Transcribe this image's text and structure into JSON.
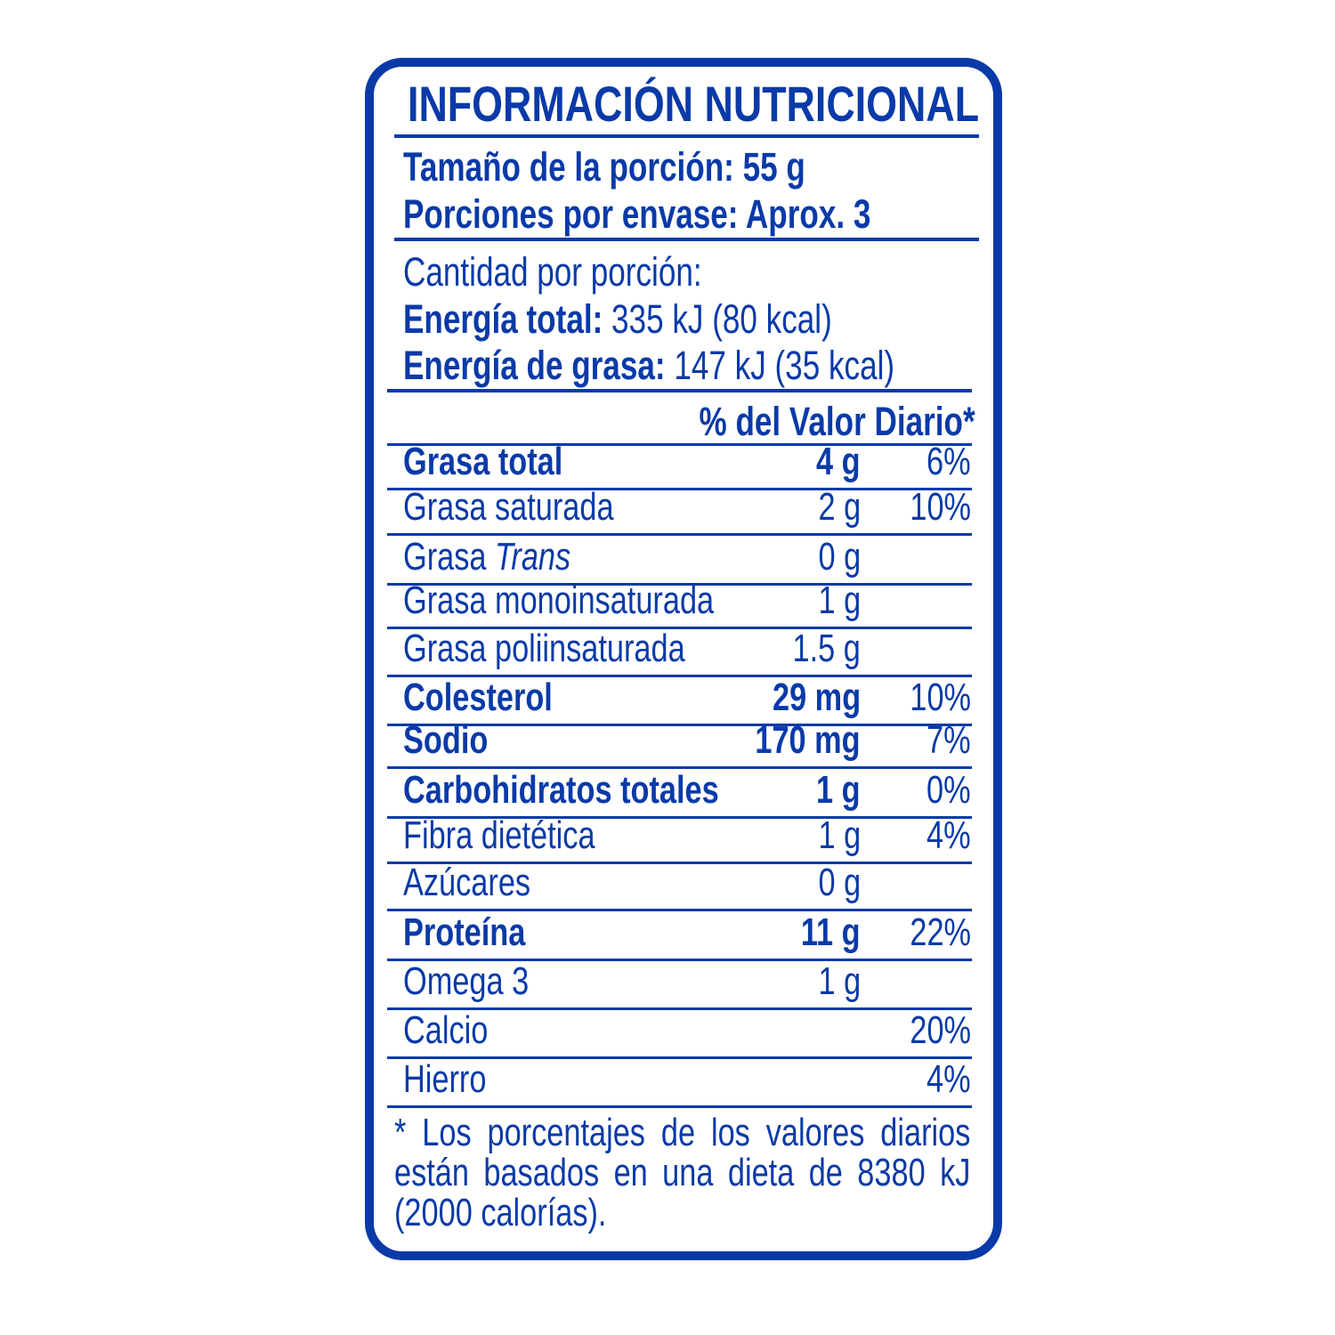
{
  "title": "INFORMACIÓN NUTRICIONAL",
  "serving_size": "Tamaño de la porción: 55 g",
  "servings_per_container": "Porciones por envase: Aprox. 3",
  "amount_per_serving": "Cantidad por porción:",
  "energy_total": {
    "label": "Energía total:",
    "value": " 335 kJ (80 kcal)"
  },
  "energy_fat": {
    "label": "Energía de grasa:",
    "value": " 147 kJ (35 kcal)"
  },
  "dv_header": "% del Valor Diario*",
  "rows": [
    {
      "name": "Grasa total",
      "amount": "4 g",
      "pct": "6%",
      "bold": true
    },
    {
      "name": "Grasa saturada",
      "amount": "2 g",
      "pct": "10%",
      "bold": false
    },
    {
      "name": "Grasa ",
      "name_italic": "Trans",
      "amount": "0 g",
      "pct": "",
      "bold": false
    },
    {
      "name": "Grasa monoinsaturada",
      "amount": "1 g",
      "pct": "",
      "bold": false
    },
    {
      "name": "Grasa poliinsaturada",
      "amount": "1.5 g",
      "pct": "",
      "bold": false
    },
    {
      "name": "Colesterol",
      "amount": "29 mg",
      "pct": "10%",
      "bold": true
    },
    {
      "name": "Sodio",
      "amount": "170 mg",
      "pct": "7%",
      "bold": true
    },
    {
      "name": "Carbohidratos totales",
      "amount": "1 g",
      "pct": "0%",
      "bold": true
    },
    {
      "name": "Fibra dietética",
      "amount": "1 g",
      "pct": "4%",
      "bold": false
    },
    {
      "name": "Azúcares",
      "amount": "0 g",
      "pct": "",
      "bold": false
    },
    {
      "name": "Proteína",
      "amount": "11 g",
      "pct": "22%",
      "bold": true
    },
    {
      "name": "Omega 3",
      "amount": "1 g",
      "pct": "",
      "bold": false
    },
    {
      "name": "Calcio",
      "amount": "",
      "pct": "20%",
      "bold": false
    },
    {
      "name": "Hierro",
      "amount": "",
      "pct": "4%",
      "bold": false
    }
  ],
  "footnote": "* Los porcentajes de los valores diarios están basados en una dieta de 8380 kJ (2000 calorías).",
  "colors": {
    "brand_blue": "#0a3aa8"
  }
}
